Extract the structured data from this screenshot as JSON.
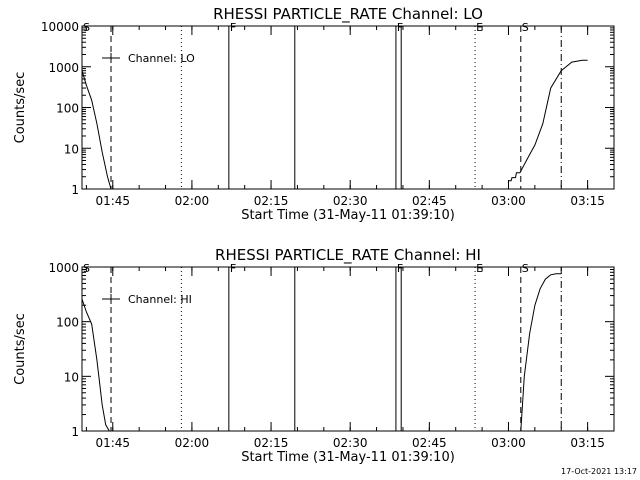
{
  "timestamp": "17-Oct-2021 13:17",
  "chart_data": [
    {
      "type": "line",
      "title": "RHESSI PARTICLE_RATE Channel: LO",
      "xlabel": "Start Time (31-May-11 01:39:10)",
      "ylabel": "Counts/sec",
      "yscale": "log",
      "xlim": [
        "01:39:10",
        "03:20:00"
      ],
      "ylim": [
        1,
        10000
      ],
      "x_ticks": [
        "01:45",
        "02:00",
        "02:15",
        "02:30",
        "02:45",
        "03:00",
        "03:15"
      ],
      "y_ticks": [
        "1",
        "10",
        "100",
        "1000",
        "10000"
      ],
      "legend": {
        "label": "Channel: LO",
        "position": "top-left"
      },
      "series": [
        {
          "x": [
            "01:39:10",
            "01:40:00",
            "01:41:00",
            "01:42:00",
            "01:43:00",
            "01:44:00",
            "01:44:40"
          ],
          "values": [
            800,
            350,
            150,
            40,
            8,
            2,
            1
          ]
        },
        {
          "x": [
            "02:59:40",
            "03:00:00",
            "03:00:00",
            "03:00:30",
            "03:00:40",
            "03:01:20",
            "03:01:30",
            "03:02:10",
            "03:03:00",
            "03:04:00",
            "03:05:00",
            "03:06:30",
            "03:08:00",
            "03:10:00",
            "03:12:00",
            "03:14:00",
            "03:15:00"
          ],
          "values": [
            1,
            1,
            1.6,
            1.6,
            1.9,
            1.9,
            2.5,
            2.5,
            4,
            7,
            12,
            40,
            300,
            800,
            1300,
            1450,
            1450
          ]
        }
      ],
      "markers": [
        {
          "label": "S",
          "time": "01:39:10",
          "style": "none"
        },
        {
          "label": "",
          "time": "01:44:40",
          "style": "dashed"
        },
        {
          "label": "",
          "time": "01:58:00",
          "style": "dotted"
        },
        {
          "label": "F",
          "time": "02:07:00",
          "style": "solid"
        },
        {
          "label": "",
          "time": "02:19:30",
          "style": "solid"
        },
        {
          "label": "F",
          "time": "02:38:40",
          "style": "solid"
        },
        {
          "label": "",
          "time": "02:39:40",
          "style": "solid"
        },
        {
          "label": "E",
          "time": "02:53:40",
          "style": "dotted"
        },
        {
          "label": "S",
          "time": "03:02:20",
          "style": "dashed"
        },
        {
          "label": "",
          "time": "03:10:00",
          "style": "dashdot"
        }
      ]
    },
    {
      "type": "line",
      "title": "RHESSI PARTICLE_RATE Channel: HI",
      "xlabel": "Start Time (31-May-11 01:39:10)",
      "ylabel": "Counts/sec",
      "yscale": "log",
      "xlim": [
        "01:39:10",
        "03:20:00"
      ],
      "ylim": [
        1,
        1000
      ],
      "x_ticks": [
        "01:45",
        "02:00",
        "02:15",
        "02:30",
        "02:45",
        "03:00",
        "03:15"
      ],
      "y_ticks": [
        "1",
        "10",
        "100",
        "1000"
      ],
      "legend": {
        "label": "Channel: HI",
        "position": "top-left"
      },
      "series": [
        {
          "x": [
            "01:39:10",
            "01:40:00",
            "01:41:00",
            "01:42:00",
            "01:43:00",
            "01:43:40",
            "01:44:20"
          ],
          "values": [
            260,
            150,
            90,
            20,
            3,
            1.3,
            1
          ]
        },
        {
          "x": [
            "03:02:20",
            "03:03:00",
            "03:04:00",
            "03:05:00",
            "03:06:00",
            "03:07:00",
            "03:08:00",
            "03:09:00",
            "03:10:00"
          ],
          "values": [
            1,
            10,
            60,
            200,
            400,
            600,
            720,
            750,
            750
          ]
        }
      ],
      "markers": [
        {
          "label": "S",
          "time": "01:39:10",
          "style": "none"
        },
        {
          "label": "",
          "time": "01:44:40",
          "style": "dashed"
        },
        {
          "label": "",
          "time": "01:58:00",
          "style": "dotted"
        },
        {
          "label": "F",
          "time": "02:07:00",
          "style": "solid"
        },
        {
          "label": "",
          "time": "02:19:30",
          "style": "solid"
        },
        {
          "label": "F",
          "time": "02:38:40",
          "style": "solid"
        },
        {
          "label": "",
          "time": "02:39:40",
          "style": "solid"
        },
        {
          "label": "E",
          "time": "02:53:40",
          "style": "dotted"
        },
        {
          "label": "S",
          "time": "03:02:20",
          "style": "dashed"
        },
        {
          "label": "",
          "time": "03:10:00",
          "style": "dashdot"
        }
      ]
    }
  ]
}
